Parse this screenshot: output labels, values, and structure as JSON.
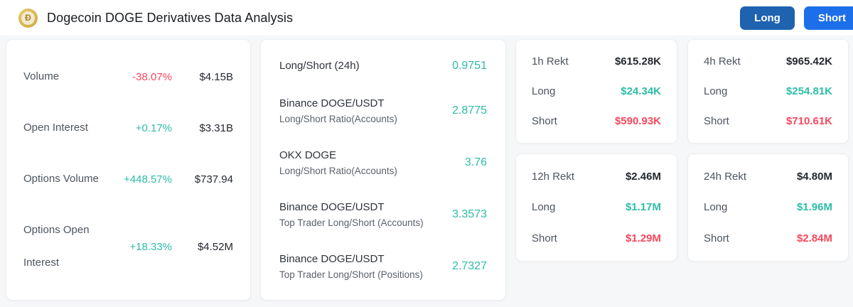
{
  "header": {
    "logo_glyph": "Ð",
    "title": "Dogecoin DOGE Derivatives Data Analysis",
    "long_button": "Long",
    "short_button": "Short"
  },
  "colors": {
    "green": "#2dbca6",
    "red": "#f6475d",
    "btn_long": "#1e62b0",
    "btn_short": "#1c6fe8"
  },
  "stats": {
    "rows": [
      {
        "label": "Volume",
        "change": "-38.07%",
        "trend": "down",
        "value": "$4.15B"
      },
      {
        "label": "Open Interest",
        "change": "+0.17%",
        "trend": "up",
        "value": "$3.31B"
      },
      {
        "label": "Options Volume",
        "change": "+448.57%",
        "trend": "up",
        "value": "$737.94"
      },
      {
        "label": "Options Open Interest",
        "change": "+18.33%",
        "trend": "up",
        "value": "$4.52M"
      }
    ]
  },
  "ratios": {
    "rows": [
      {
        "title": "Long/Short (24h)",
        "subtitle": "",
        "value": "0.9751"
      },
      {
        "title": "Binance DOGE/USDT",
        "subtitle": "Long/Short Ratio(Accounts)",
        "value": "2.8775"
      },
      {
        "title": "OKX DOGE",
        "subtitle": "Long/Short Ratio(Accounts)",
        "value": "3.76"
      },
      {
        "title": "Binance DOGE/USDT",
        "subtitle": "Top Trader Long/Short (Accounts)",
        "value": "3.3573"
      },
      {
        "title": "Binance DOGE/USDT",
        "subtitle": "Top Trader Long/Short (Positions)",
        "value": "2.7327"
      }
    ]
  },
  "rekt": {
    "long_label": "Long",
    "short_label": "Short",
    "cards": [
      {
        "period": "1h Rekt",
        "total": "$615.28K",
        "long": "$24.34K",
        "short": "$590.93K"
      },
      {
        "period": "4h Rekt",
        "total": "$965.42K",
        "long": "$254.81K",
        "short": "$710.61K"
      },
      {
        "period": "12h Rekt",
        "total": "$2.46M",
        "long": "$1.17M",
        "short": "$1.29M"
      },
      {
        "period": "24h Rekt",
        "total": "$4.80M",
        "long": "$1.96M",
        "short": "$2.84M"
      }
    ]
  }
}
